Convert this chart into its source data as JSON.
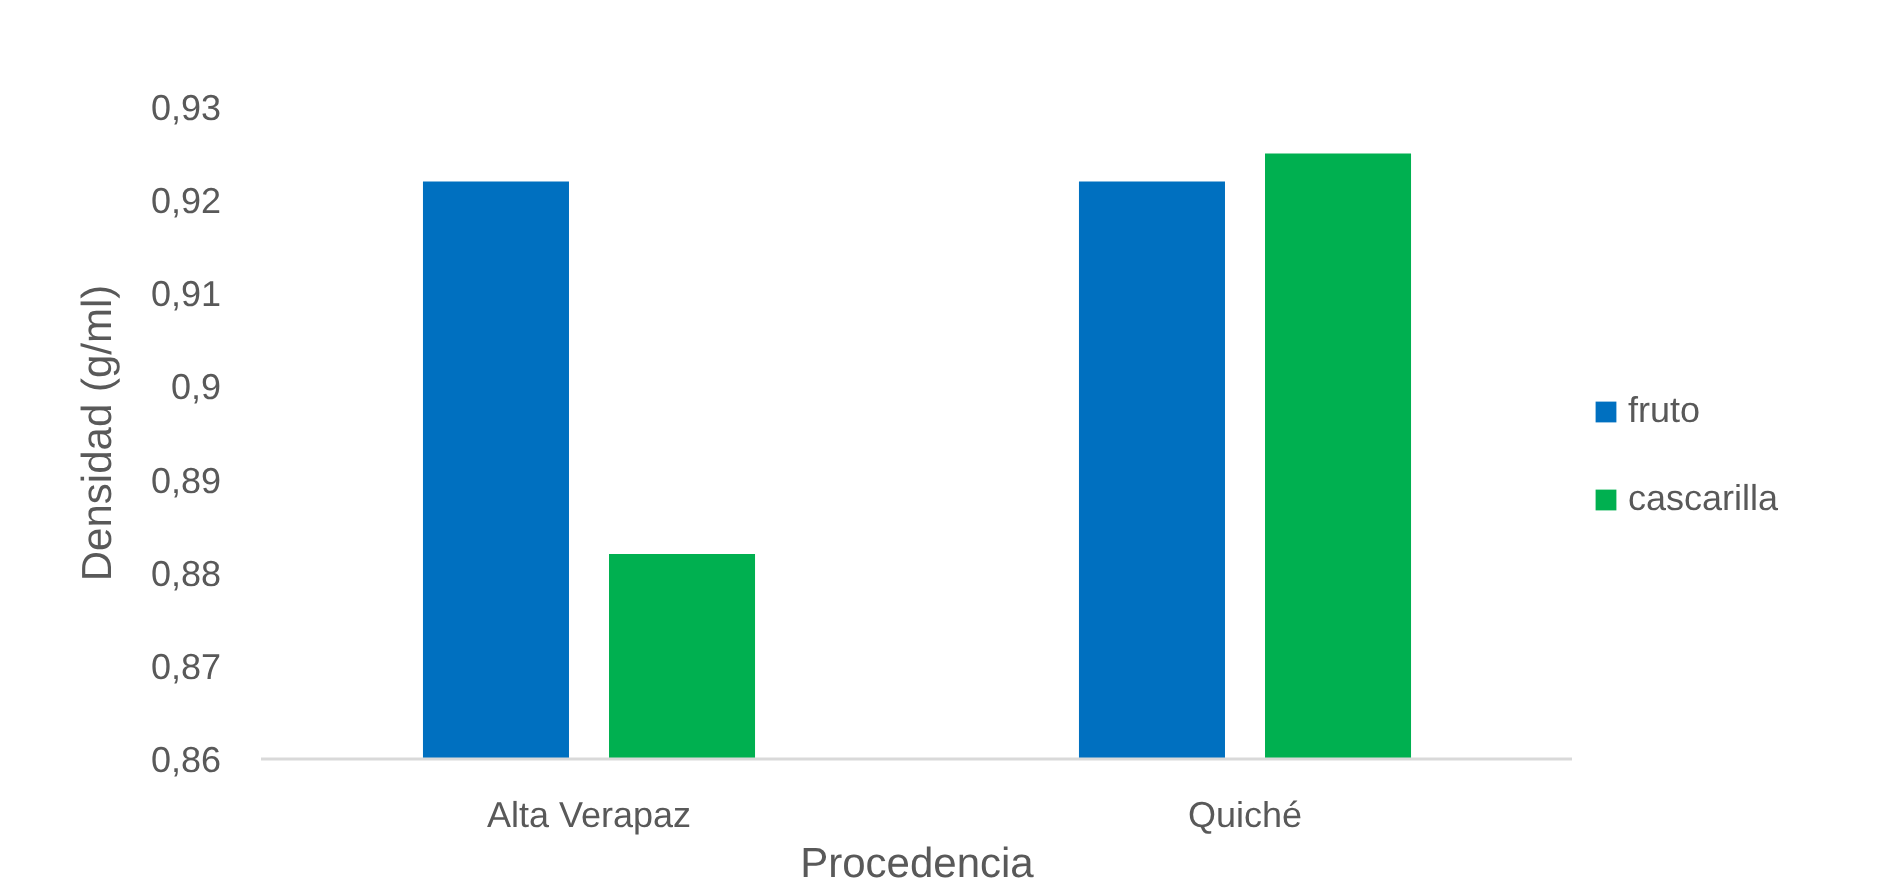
{
  "chart_data": {
    "type": "bar",
    "xlabel": "Procedencia",
    "ylabel": "Densidad (g/ml)",
    "categories": [
      "Alta Verapaz",
      "Quiché"
    ],
    "series": [
      {
        "name": "fruto",
        "color": "#0070c0",
        "values": [
          0.922,
          0.922
        ]
      },
      {
        "name": "cascarilla",
        "color": "#00b050",
        "values": [
          0.882,
          0.925
        ]
      }
    ],
    "ylim": [
      0.86,
      0.93
    ],
    "yticks": [
      {
        "value": 0.86,
        "label": "0,86"
      },
      {
        "value": 0.87,
        "label": "0,87"
      },
      {
        "value": 0.88,
        "label": "0,88"
      },
      {
        "value": 0.89,
        "label": "0,89"
      },
      {
        "value": 0.9,
        "label": "0,9"
      },
      {
        "value": 0.91,
        "label": "0,91"
      },
      {
        "value": 0.92,
        "label": "0,92"
      },
      {
        "value": 0.93,
        "label": "0,93"
      }
    ],
    "legend": "right"
  }
}
